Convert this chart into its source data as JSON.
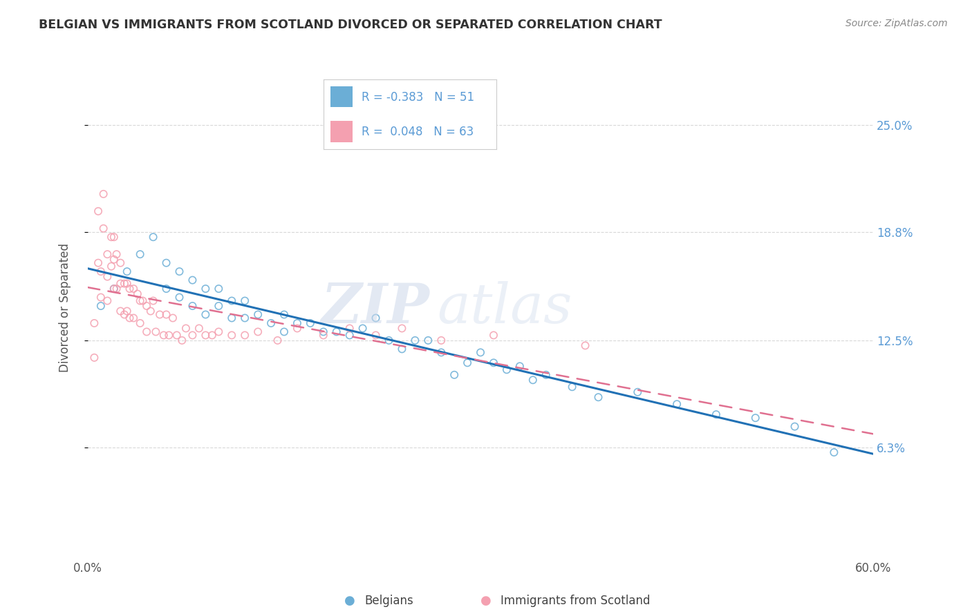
{
  "title": "BELGIAN VS IMMIGRANTS FROM SCOTLAND DIVORCED OR SEPARATED CORRELATION CHART",
  "source_text": "Source: ZipAtlas.com",
  "ylabel": "Divorced or Separated",
  "xlim": [
    0.0,
    0.6
  ],
  "ylim": [
    0.0,
    0.288
  ],
  "ytick_vals": [
    0.063,
    0.125,
    0.188,
    0.25
  ],
  "right_ytick_labels": [
    "6.3%",
    "12.5%",
    "18.8%",
    "25.0%"
  ],
  "belgian_color": "#6baed6",
  "scotland_color": "#f4a0b0",
  "belgian_line_color": "#2171b5",
  "scotland_line_color": "#e07090",
  "belgian_R": -0.383,
  "belgian_N": 51,
  "scotland_R": 0.048,
  "scotland_N": 63,
  "belgians_x": [
    0.01,
    0.02,
    0.03,
    0.04,
    0.05,
    0.06,
    0.06,
    0.07,
    0.07,
    0.08,
    0.08,
    0.09,
    0.09,
    0.1,
    0.1,
    0.11,
    0.11,
    0.12,
    0.12,
    0.13,
    0.14,
    0.15,
    0.15,
    0.16,
    0.17,
    0.18,
    0.19,
    0.2,
    0.21,
    0.22,
    0.23,
    0.24,
    0.25,
    0.26,
    0.27,
    0.28,
    0.29,
    0.3,
    0.31,
    0.32,
    0.33,
    0.34,
    0.35,
    0.37,
    0.39,
    0.42,
    0.45,
    0.48,
    0.51,
    0.54,
    0.57
  ],
  "belgians_y": [
    0.145,
    0.155,
    0.165,
    0.175,
    0.185,
    0.17,
    0.155,
    0.165,
    0.15,
    0.16,
    0.145,
    0.155,
    0.14,
    0.155,
    0.145,
    0.148,
    0.138,
    0.148,
    0.138,
    0.14,
    0.135,
    0.14,
    0.13,
    0.135,
    0.135,
    0.13,
    0.13,
    0.128,
    0.132,
    0.138,
    0.125,
    0.12,
    0.125,
    0.125,
    0.118,
    0.105,
    0.112,
    0.118,
    0.112,
    0.108,
    0.11,
    0.102,
    0.105,
    0.098,
    0.092,
    0.095,
    0.088,
    0.082,
    0.08,
    0.075,
    0.06
  ],
  "scotland_x": [
    0.005,
    0.005,
    0.008,
    0.008,
    0.01,
    0.01,
    0.012,
    0.012,
    0.015,
    0.015,
    0.015,
    0.018,
    0.018,
    0.02,
    0.02,
    0.02,
    0.022,
    0.022,
    0.025,
    0.025,
    0.025,
    0.028,
    0.028,
    0.03,
    0.03,
    0.032,
    0.032,
    0.035,
    0.035,
    0.038,
    0.04,
    0.04,
    0.042,
    0.045,
    0.045,
    0.048,
    0.05,
    0.052,
    0.055,
    0.058,
    0.06,
    0.062,
    0.065,
    0.068,
    0.072,
    0.075,
    0.08,
    0.085,
    0.09,
    0.095,
    0.1,
    0.11,
    0.12,
    0.13,
    0.145,
    0.16,
    0.18,
    0.2,
    0.22,
    0.24,
    0.27,
    0.31,
    0.38
  ],
  "scotland_y": [
    0.135,
    0.115,
    0.2,
    0.17,
    0.165,
    0.15,
    0.21,
    0.19,
    0.175,
    0.162,
    0.148,
    0.185,
    0.168,
    0.185,
    0.172,
    0.155,
    0.175,
    0.155,
    0.17,
    0.158,
    0.142,
    0.158,
    0.14,
    0.158,
    0.142,
    0.155,
    0.138,
    0.155,
    0.138,
    0.152,
    0.148,
    0.135,
    0.148,
    0.145,
    0.13,
    0.142,
    0.148,
    0.13,
    0.14,
    0.128,
    0.14,
    0.128,
    0.138,
    0.128,
    0.125,
    0.132,
    0.128,
    0.132,
    0.128,
    0.128,
    0.13,
    0.128,
    0.128,
    0.13,
    0.125,
    0.132,
    0.128,
    0.132,
    0.128,
    0.132,
    0.125,
    0.128,
    0.122
  ],
  "watermark_zip": "ZIP",
  "watermark_atlas": "atlas",
  "background_color": "#ffffff",
  "grid_color": "#d8d8d8"
}
